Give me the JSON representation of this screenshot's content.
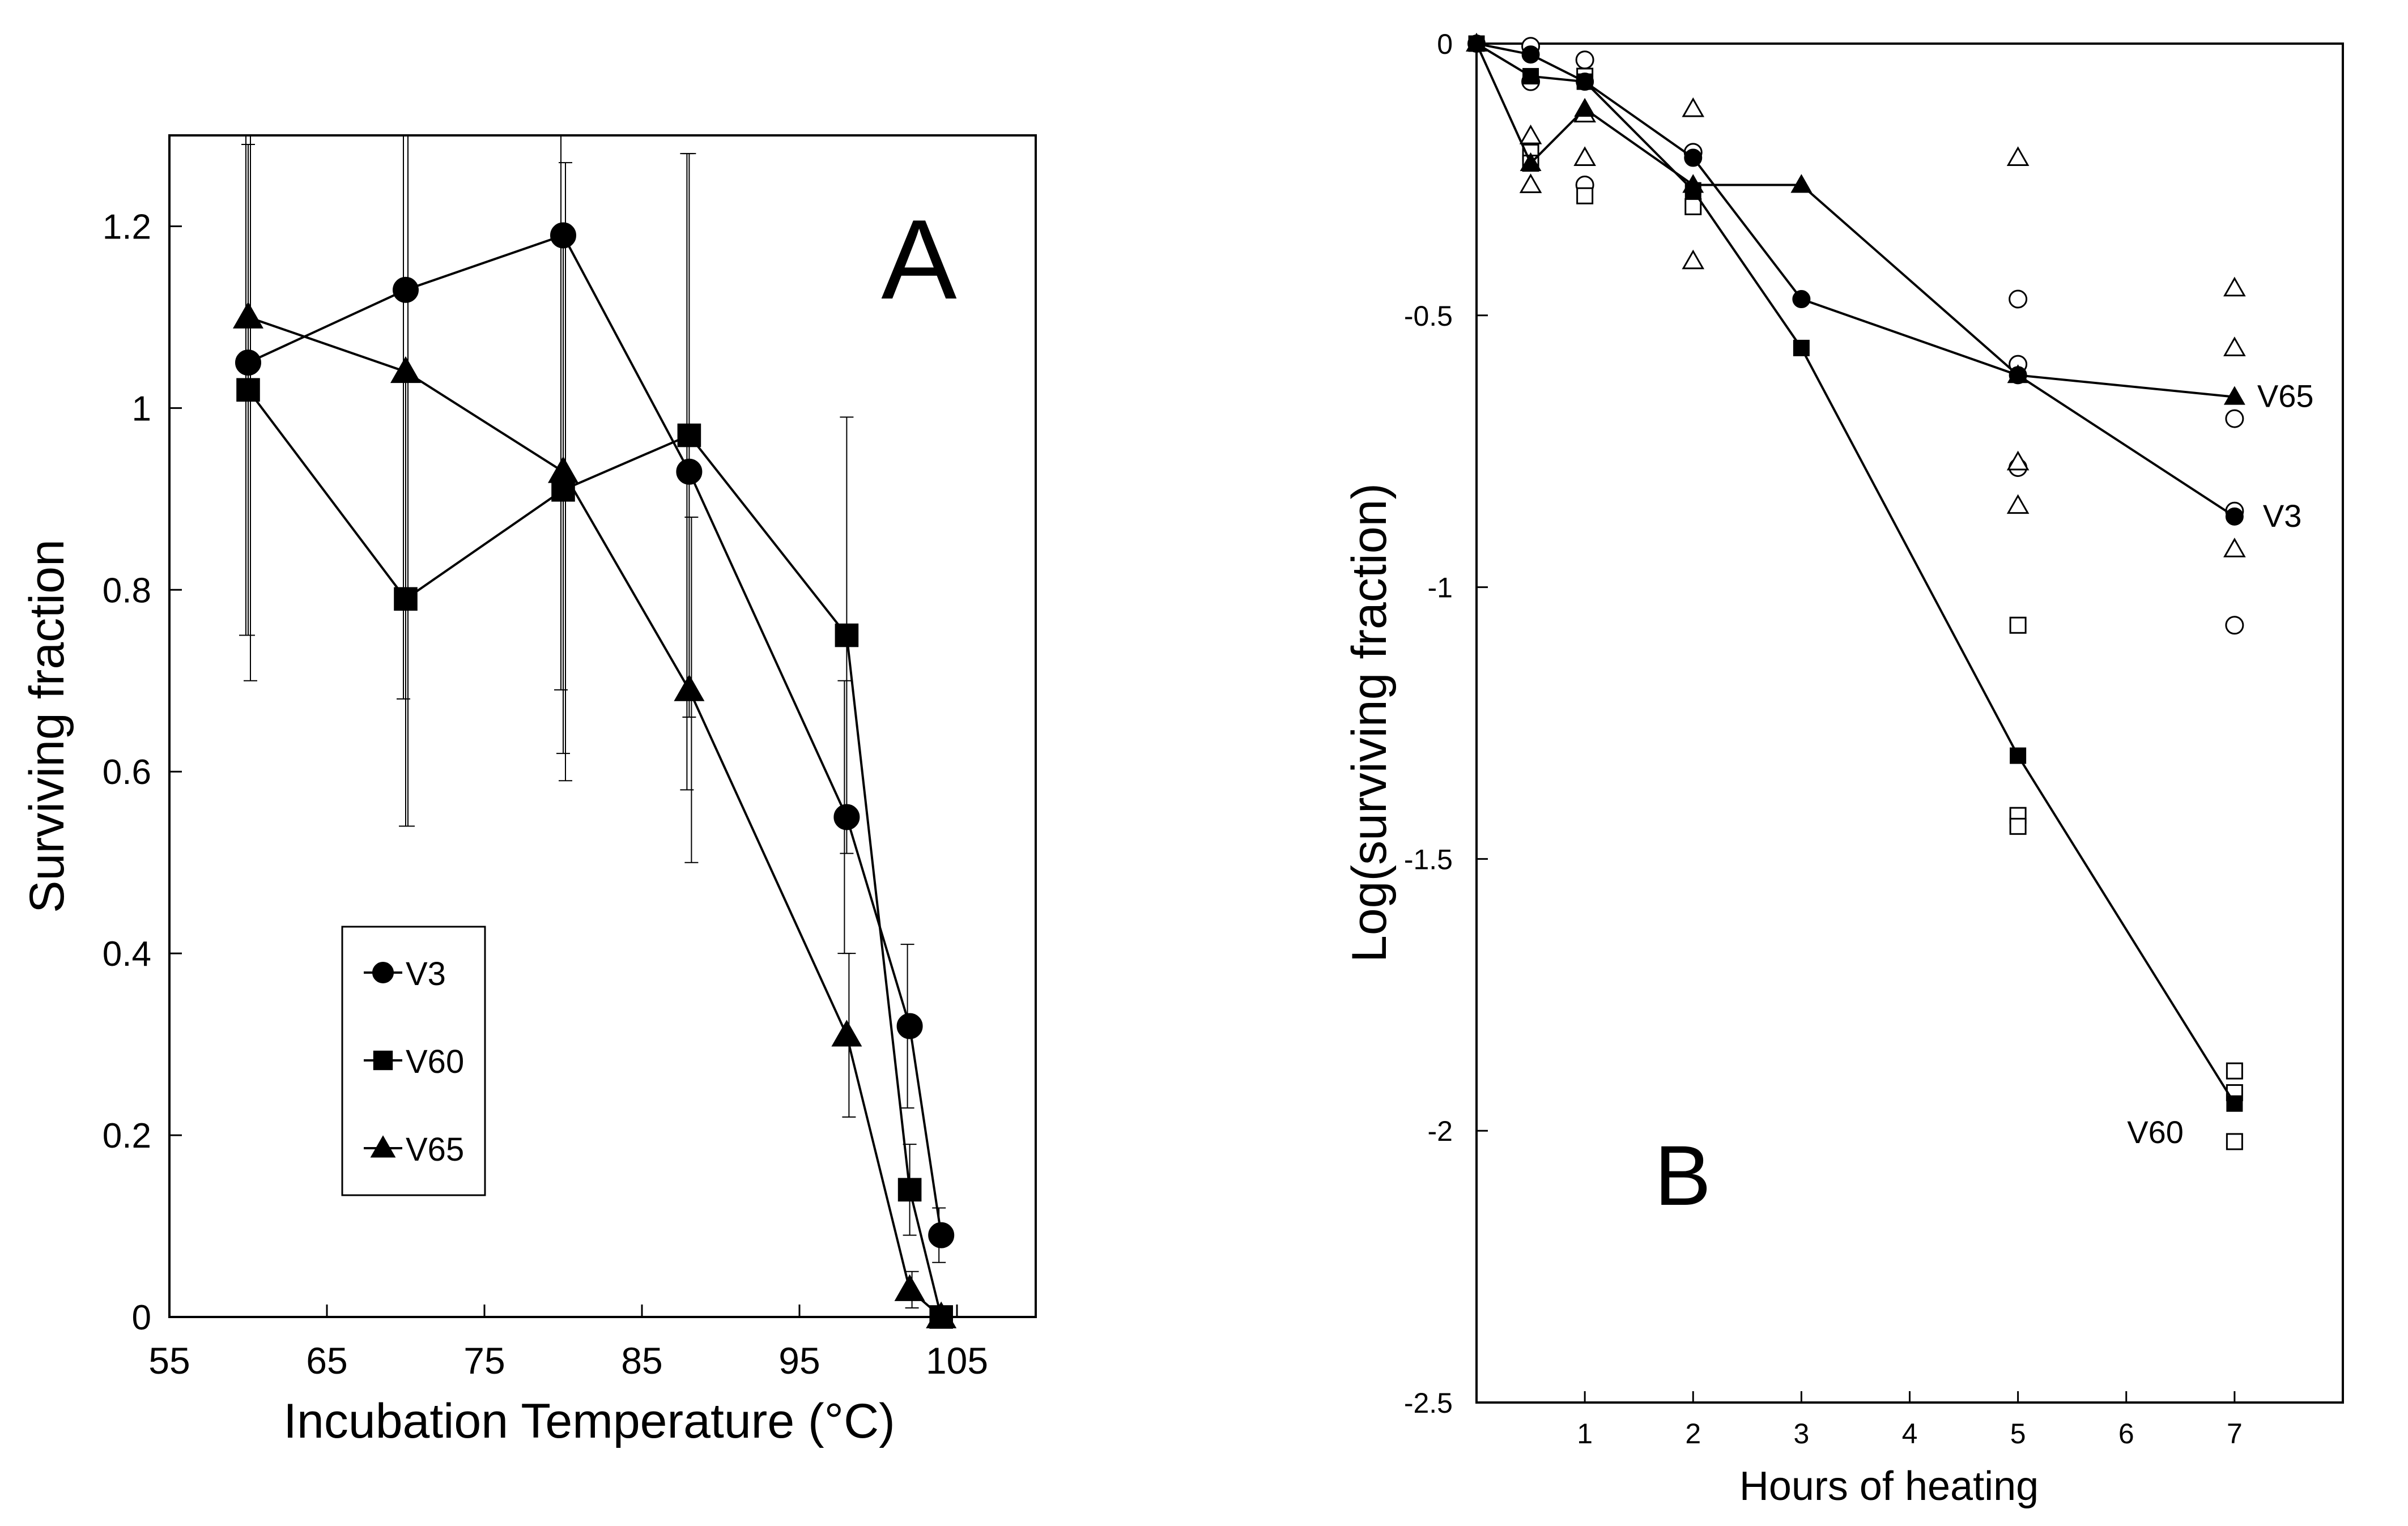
{
  "chart_data": [
    {
      "type": "line",
      "panel_label": "A",
      "xlabel": "Incubation Temperature (°C)",
      "ylabel": "Surviving fraction",
      "xlim": [
        55,
        110
      ],
      "ylim": [
        0,
        1.3
      ],
      "xticks": [
        55,
        65,
        75,
        85,
        95,
        105
      ],
      "yticks": [
        0,
        0.2,
        0.4,
        0.6,
        0.8,
        1,
        1.2
      ],
      "xtick_labels": [
        "55",
        "65",
        "75",
        "85",
        "95",
        "105"
      ],
      "ytick_labels": [
        "0",
        "0.2",
        "0.4",
        "0.6",
        "0.8",
        "1",
        "1.2"
      ],
      "legend_position": "lower-left",
      "series": [
        {
          "name": "V3",
          "marker": "circle",
          "x": [
            60,
            70,
            80,
            88,
            98,
            102,
            104
          ],
          "values": [
            1.05,
            1.13,
            1.19,
            0.93,
            0.55,
            0.32,
            0.09
          ],
          "error": [
            0.3,
            0.45,
            0.5,
            0.35,
            0.15,
            0.09,
            0.03
          ]
        },
        {
          "name": "V60",
          "marker": "square",
          "x": [
            60,
            70,
            80,
            88,
            98,
            102,
            104
          ],
          "values": [
            1.02,
            0.79,
            0.91,
            0.97,
            0.75,
            0.14,
            0.0
          ],
          "error": [
            0.27,
            0.25,
            0.29,
            0.31,
            0.24,
            0.05,
            0.01
          ]
        },
        {
          "name": "V65",
          "marker": "triangle",
          "x": [
            60,
            70,
            80,
            88,
            98,
            102,
            104
          ],
          "values": [
            1.1,
            1.04,
            0.93,
            0.69,
            0.31,
            0.03,
            0.0
          ],
          "error": [
            0.4,
            0.5,
            0.34,
            0.19,
            0.09,
            0.02,
            0.01
          ]
        }
      ]
    },
    {
      "type": "line",
      "panel_label": "B",
      "xlabel": "Hours of heating",
      "ylabel": "Log(surviving fraction)",
      "xlim": [
        0,
        8
      ],
      "ylim": [
        -2.5,
        0
      ],
      "xticks": [
        1,
        2,
        3,
        4,
        5,
        6,
        7
      ],
      "yticks": [
        0,
        -0.5,
        -1,
        -1.5,
        -2,
        -2.5
      ],
      "xtick_labels": [
        "1",
        "2",
        "3",
        "4",
        "5",
        "6",
        "7"
      ],
      "ytick_labels": [
        "0",
        "-0.5",
        "-1",
        "-1.5",
        "-2",
        "-2.5"
      ],
      "series": [
        {
          "name": "V3",
          "marker": "circle",
          "x": [
            0,
            0.5,
            1,
            2,
            3,
            5,
            7
          ],
          "values": [
            0,
            -0.02,
            -0.07,
            -0.21,
            -0.47,
            -0.61,
            -0.87
          ],
          "replicates": [
            [
              0.5,
              -0.005
            ],
            [
              0.5,
              -0.07
            ],
            [
              1,
              -0.03
            ],
            [
              1,
              -0.26
            ],
            [
              2,
              -0.2
            ],
            [
              5,
              -0.47
            ],
            [
              5,
              -0.59
            ],
            [
              5,
              -0.78
            ],
            [
              7,
              -0.69
            ],
            [
              7,
              -0.86
            ],
            [
              7,
              -1.07
            ]
          ]
        },
        {
          "name": "V60",
          "marker": "square",
          "x": [
            0,
            0.5,
            1,
            2,
            3,
            5,
            7
          ],
          "values": [
            0,
            -0.06,
            -0.07,
            -0.27,
            -0.56,
            -1.31,
            -1.95
          ],
          "replicates": [
            [
              0.5,
              -0.2
            ],
            [
              0.5,
              -0.22
            ],
            [
              1,
              -0.06
            ],
            [
              1,
              -0.28
            ],
            [
              2,
              -0.3
            ],
            [
              5,
              -1.07
            ],
            [
              5,
              -1.42
            ],
            [
              5,
              -1.44
            ],
            [
              7,
              -1.89
            ],
            [
              7,
              -1.93
            ],
            [
              7,
              -2.02
            ]
          ]
        },
        {
          "name": "V65",
          "marker": "triangle",
          "x": [
            0,
            0.5,
            1,
            2,
            3,
            5,
            7
          ],
          "values": [
            0,
            -0.22,
            -0.12,
            -0.26,
            -0.26,
            -0.61,
            -0.65
          ],
          "replicates": [
            [
              0.5,
              -0.17
            ],
            [
              0.5,
              -0.26
            ],
            [
              1,
              -0.21
            ],
            [
              1,
              -0.13
            ],
            [
              2,
              -0.12
            ],
            [
              2,
              -0.4
            ],
            [
              5,
              -0.21
            ],
            [
              5,
              -0.77
            ],
            [
              5,
              -0.85
            ],
            [
              7,
              -0.45
            ],
            [
              7,
              -0.56
            ],
            [
              7,
              -0.93
            ]
          ]
        }
      ],
      "annotations": [
        {
          "text": "V65",
          "anchor_series": "V65",
          "anchor_x": 7
        },
        {
          "text": "V3",
          "anchor_series": "V3",
          "anchor_x": 7
        },
        {
          "text": "V60",
          "anchor_series": "V60",
          "anchor_x": 7
        }
      ]
    }
  ]
}
